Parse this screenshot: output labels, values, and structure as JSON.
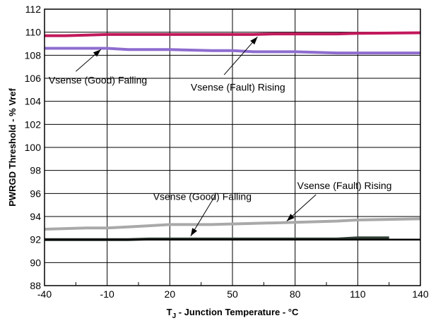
{
  "chart_data": {
    "type": "line",
    "title": "",
    "xlabel_main": "T",
    "xlabel_sub": "J",
    "xlabel_rest": " - Junction Temperature - °C",
    "ylabel": "PWRGD Threshold - % Vref",
    "xlim": [
      -40,
      140
    ],
    "ylim": [
      88,
      112
    ],
    "xticks": [
      -40,
      -10,
      20,
      50,
      80,
      110,
      140
    ],
    "yticks": [
      88,
      90,
      92,
      94,
      96,
      98,
      100,
      102,
      104,
      106,
      108,
      110,
      112
    ],
    "grid": true,
    "series": [
      {
        "name": "",
        "color": "#c2185b",
        "x": [
          -40,
          -30,
          -10,
          20,
          50,
          60,
          70,
          80,
          100,
          110,
          140
        ],
        "y": [
          109.7,
          109.7,
          109.8,
          109.8,
          109.8,
          109.8,
          109.85,
          109.85,
          109.85,
          109.9,
          109.95
        ]
      },
      {
        "name": "",
        "color": "#8e6ccf",
        "x": [
          -40,
          -10,
          0,
          20,
          40,
          50,
          60,
          80,
          100,
          140
        ],
        "y": [
          108.6,
          108.6,
          108.5,
          108.5,
          108.4,
          108.4,
          108.3,
          108.3,
          108.2,
          108.2
        ]
      },
      {
        "name": "",
        "color": "#a9a9a9",
        "x": [
          -40,
          -20,
          -10,
          0,
          10,
          20,
          40,
          60,
          80,
          100,
          110,
          140
        ],
        "y": [
          92.9,
          93.0,
          93.0,
          93.1,
          93.2,
          93.3,
          93.3,
          93.4,
          93.5,
          93.6,
          93.7,
          93.8
        ]
      },
      {
        "name": "",
        "color": "#2f3f35",
        "x": [
          -40,
          0,
          10,
          20,
          60,
          100,
          110,
          125
        ],
        "y": [
          92.0,
          92.0,
          92.05,
          92.05,
          92.05,
          92.05,
          92.15,
          92.15
        ]
      },
      {
        "name": "",
        "color": "#000000",
        "x": [
          -40,
          140
        ],
        "y": [
          92.0,
          92.0
        ]
      }
    ],
    "annotations": [
      {
        "text": "Vsense (Good) Falling",
        "x": -38,
        "y": 105.85,
        "ax": -25,
        "ay": 106.6,
        "tx": -13,
        "ty": 108.5
      },
      {
        "text": "Vsense (Fault) Rising",
        "x": 30,
        "y": 105.25,
        "ax": 46,
        "ay": 106.3,
        "tx": 62,
        "ty": 109.6
      },
      {
        "text": "Vsense (Good) Falling",
        "x": 12,
        "y": 95.75,
        "ax": 42,
        "ay": 95.9,
        "tx": 30,
        "ty": 92.3
      },
      {
        "text": "Vsense (Fault) Rising",
        "x": 81,
        "y": 96.7,
        "ax": 90,
        "ay": 95.9,
        "tx": 76,
        "ty": 93.6
      }
    ]
  }
}
